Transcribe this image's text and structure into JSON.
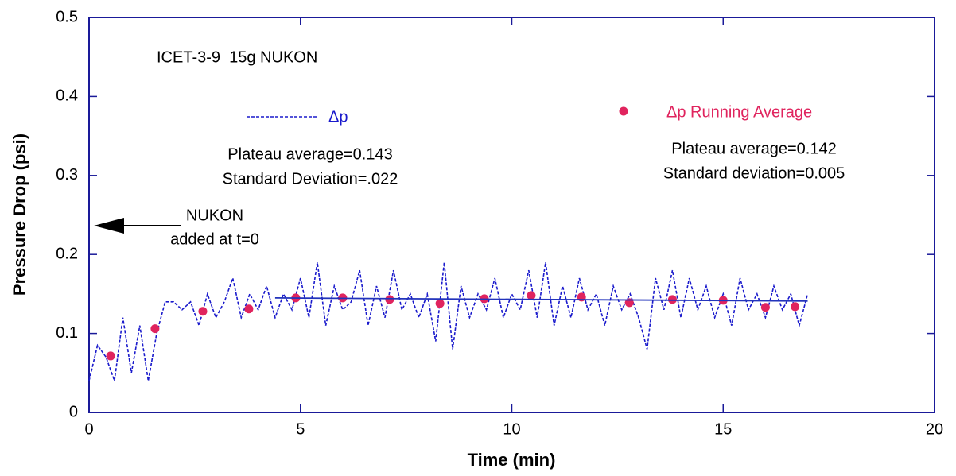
{
  "chart_data": {
    "type": "line",
    "xlabel": "Time (min)",
    "ylabel": "Pressure Drop (psi)",
    "xlim": [
      0,
      20
    ],
    "ylim": [
      0,
      0.5
    ],
    "xticks": [
      0,
      5,
      10,
      15,
      20
    ],
    "yticks": [
      0,
      0.1,
      0.2,
      0.3,
      0.4,
      0.5
    ],
    "annotations": [
      "ICET-3-9  15g NUKON",
      "Plateau average=0.143",
      "Standard Deviation=.022",
      "Plateau average=0.142",
      "Standard deviation=0.005",
      "NUKON",
      "added at t=0"
    ],
    "series": [
      {
        "name": "Δp",
        "color": "#1a1acc",
        "style": "dashed",
        "x": [
          0,
          0.2,
          0.4,
          0.6,
          0.8,
          1.0,
          1.2,
          1.4,
          1.6,
          1.8,
          2.0,
          2.2,
          2.4,
          2.6,
          2.8,
          3.0,
          3.2,
          3.4,
          3.6,
          3.8,
          4.0,
          4.2,
          4.4,
          4.6,
          4.8,
          5.0,
          5.2,
          5.4,
          5.6,
          5.8,
          6.0,
          6.2,
          6.4,
          6.6,
          6.8,
          7.0,
          7.2,
          7.4,
          7.6,
          7.8,
          8.0,
          8.2,
          8.4,
          8.6,
          8.8,
          9.0,
          9.2,
          9.4,
          9.6,
          9.8,
          10.0,
          10.2,
          10.4,
          10.6,
          10.8,
          11.0,
          11.2,
          11.4,
          11.6,
          11.8,
          12.0,
          12.2,
          12.4,
          12.6,
          12.8,
          13.0,
          13.2,
          13.4,
          13.6,
          13.8,
          14.0,
          14.2,
          14.4,
          14.6,
          14.8,
          15.0,
          15.2,
          15.4,
          15.6,
          15.8,
          16.0,
          16.2,
          16.4,
          16.6,
          16.8,
          17.0
        ],
        "values": [
          0.04,
          0.085,
          0.07,
          0.04,
          0.12,
          0.05,
          0.11,
          0.04,
          0.1,
          0.14,
          0.14,
          0.13,
          0.14,
          0.11,
          0.15,
          0.12,
          0.14,
          0.17,
          0.12,
          0.15,
          0.13,
          0.16,
          0.12,
          0.15,
          0.13,
          0.17,
          0.12,
          0.19,
          0.11,
          0.16,
          0.13,
          0.14,
          0.18,
          0.11,
          0.16,
          0.12,
          0.18,
          0.13,
          0.15,
          0.12,
          0.15,
          0.09,
          0.19,
          0.08,
          0.16,
          0.12,
          0.15,
          0.13,
          0.17,
          0.12,
          0.15,
          0.13,
          0.18,
          0.12,
          0.19,
          0.11,
          0.16,
          0.12,
          0.17,
          0.13,
          0.15,
          0.11,
          0.16,
          0.13,
          0.15,
          0.12,
          0.08,
          0.17,
          0.13,
          0.18,
          0.12,
          0.17,
          0.13,
          0.16,
          0.12,
          0.15,
          0.11,
          0.17,
          0.13,
          0.15,
          0.12,
          0.16,
          0.13,
          0.15,
          0.11,
          0.15
        ]
      },
      {
        "name": "Δp Running Average",
        "color": "#e0245e",
        "style": "markers",
        "x": [
          0.51,
          1.56,
          2.69,
          3.78,
          4.89,
          6.0,
          7.11,
          8.3,
          9.35,
          10.46,
          11.65,
          12.78,
          13.8,
          15.0,
          16.0,
          16.7
        ],
        "values": [
          0.0715,
          0.106,
          0.128,
          0.131,
          0.145,
          0.145,
          0.143,
          0.138,
          0.144,
          0.148,
          0.146,
          0.139,
          0.143,
          0.142,
          0.133,
          0.134
        ]
      }
    ],
    "fit_line": {
      "color": "#2233bb",
      "x": [
        4.4,
        17.0
      ],
      "values": [
        0.145,
        0.141
      ]
    }
  }
}
